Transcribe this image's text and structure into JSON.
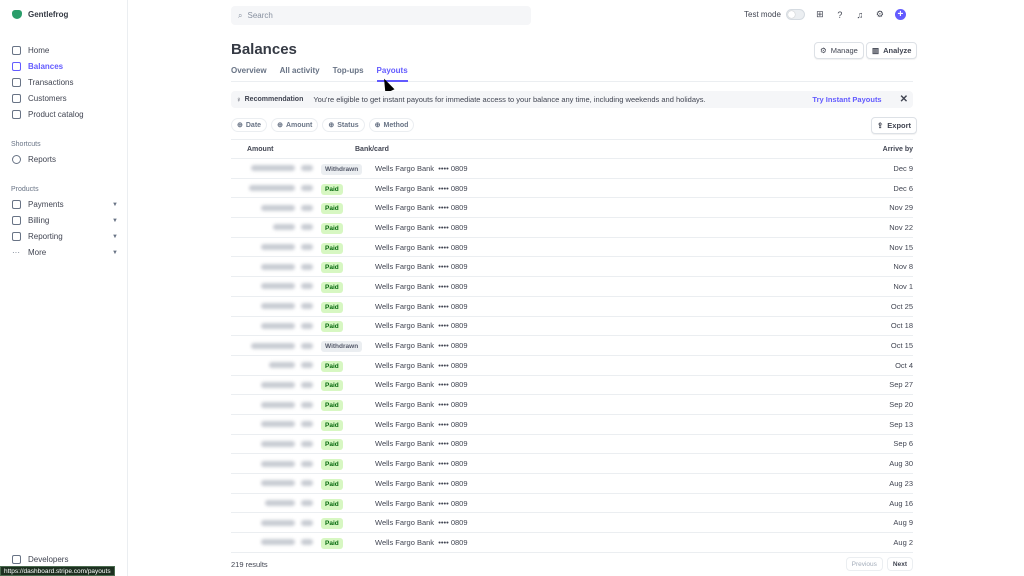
{
  "brand": {
    "name": "Gentlefrog"
  },
  "sidebar": {
    "items": [
      {
        "label": "Home",
        "icon": "home-icon"
      },
      {
        "label": "Balances",
        "icon": "balances-icon",
        "active": true
      },
      {
        "label": "Transactions",
        "icon": "transactions-icon"
      },
      {
        "label": "Customers",
        "icon": "customers-icon"
      },
      {
        "label": "Product catalog",
        "icon": "product-icon"
      }
    ],
    "shortcuts_title": "Shortcuts",
    "shortcuts": [
      {
        "label": "Reports",
        "icon": "clock-icon"
      }
    ],
    "products_title": "Products",
    "products": [
      {
        "label": "Payments"
      },
      {
        "label": "Billing"
      },
      {
        "label": "Reporting"
      },
      {
        "label": "More"
      }
    ],
    "developers": "Developers"
  },
  "status_url": "https://dashboard.stripe.com/payouts",
  "search": {
    "placeholder": "Search"
  },
  "topbar": {
    "test_mode": "Test mode"
  },
  "page": {
    "title": "Balances",
    "manage": "Manage",
    "analyze": "Analyze"
  },
  "tabs": [
    "Overview",
    "All activity",
    "Top-ups",
    "Payouts"
  ],
  "active_tab": "Payouts",
  "banner": {
    "label": "Recommendation",
    "text": "You're eligible to get instant payouts for immediate access to your balance any time, including weekends and holidays.",
    "cta": "Try Instant Payouts"
  },
  "filters": [
    "Date",
    "Amount",
    "Status",
    "Method"
  ],
  "export": "Export",
  "table": {
    "headers": {
      "amount": "Amount",
      "bank": "Bank/card",
      "arrive": "Arrive by"
    },
    "rows": [
      {
        "status": "Withdrawn",
        "bank": "Wells Fargo Bank",
        "last4": "•••• 0809",
        "arrive": "Dec 9"
      },
      {
        "status": "Paid",
        "bank": "Wells Fargo Bank",
        "last4": "•••• 0809",
        "arrive": "Dec 6"
      },
      {
        "status": "Paid",
        "bank": "Wells Fargo Bank",
        "last4": "•••• 0809",
        "arrive": "Nov 29"
      },
      {
        "status": "Paid",
        "bank": "Wells Fargo Bank",
        "last4": "•••• 0809",
        "arrive": "Nov 22"
      },
      {
        "status": "Paid",
        "bank": "Wells Fargo Bank",
        "last4": "•••• 0809",
        "arrive": "Nov 15"
      },
      {
        "status": "Paid",
        "bank": "Wells Fargo Bank",
        "last4": "•••• 0809",
        "arrive": "Nov 8"
      },
      {
        "status": "Paid",
        "bank": "Wells Fargo Bank",
        "last4": "•••• 0809",
        "arrive": "Nov 1"
      },
      {
        "status": "Paid",
        "bank": "Wells Fargo Bank",
        "last4": "•••• 0809",
        "arrive": "Oct 25"
      },
      {
        "status": "Paid",
        "bank": "Wells Fargo Bank",
        "last4": "•••• 0809",
        "arrive": "Oct 18"
      },
      {
        "status": "Withdrawn",
        "bank": "Wells Fargo Bank",
        "last4": "•••• 0809",
        "arrive": "Oct 15"
      },
      {
        "status": "Paid",
        "bank": "Wells Fargo Bank",
        "last4": "•••• 0809",
        "arrive": "Oct 4"
      },
      {
        "status": "Paid",
        "bank": "Wells Fargo Bank",
        "last4": "•••• 0809",
        "arrive": "Sep 27"
      },
      {
        "status": "Paid",
        "bank": "Wells Fargo Bank",
        "last4": "•••• 0809",
        "arrive": "Sep 20"
      },
      {
        "status": "Paid",
        "bank": "Wells Fargo Bank",
        "last4": "•••• 0809",
        "arrive": "Sep 13"
      },
      {
        "status": "Paid",
        "bank": "Wells Fargo Bank",
        "last4": "•••• 0809",
        "arrive": "Sep 6"
      },
      {
        "status": "Paid",
        "bank": "Wells Fargo Bank",
        "last4": "•••• 0809",
        "arrive": "Aug 30"
      },
      {
        "status": "Paid",
        "bank": "Wells Fargo Bank",
        "last4": "•••• 0809",
        "arrive": "Aug 23"
      },
      {
        "status": "Paid",
        "bank": "Wells Fargo Bank",
        "last4": "•••• 0809",
        "arrive": "Aug 16"
      },
      {
        "status": "Paid",
        "bank": "Wells Fargo Bank",
        "last4": "•••• 0809",
        "arrive": "Aug 9"
      },
      {
        "status": "Paid",
        "bank": "Wells Fargo Bank",
        "last4": "•••• 0809",
        "arrive": "Aug 2"
      }
    ]
  },
  "footer": {
    "results": "219 results",
    "previous": "Previous",
    "next": "Next"
  },
  "colors": {
    "accent": "#635bff",
    "paid_bg": "#d7f7c2",
    "paid_text": "#05690d"
  }
}
